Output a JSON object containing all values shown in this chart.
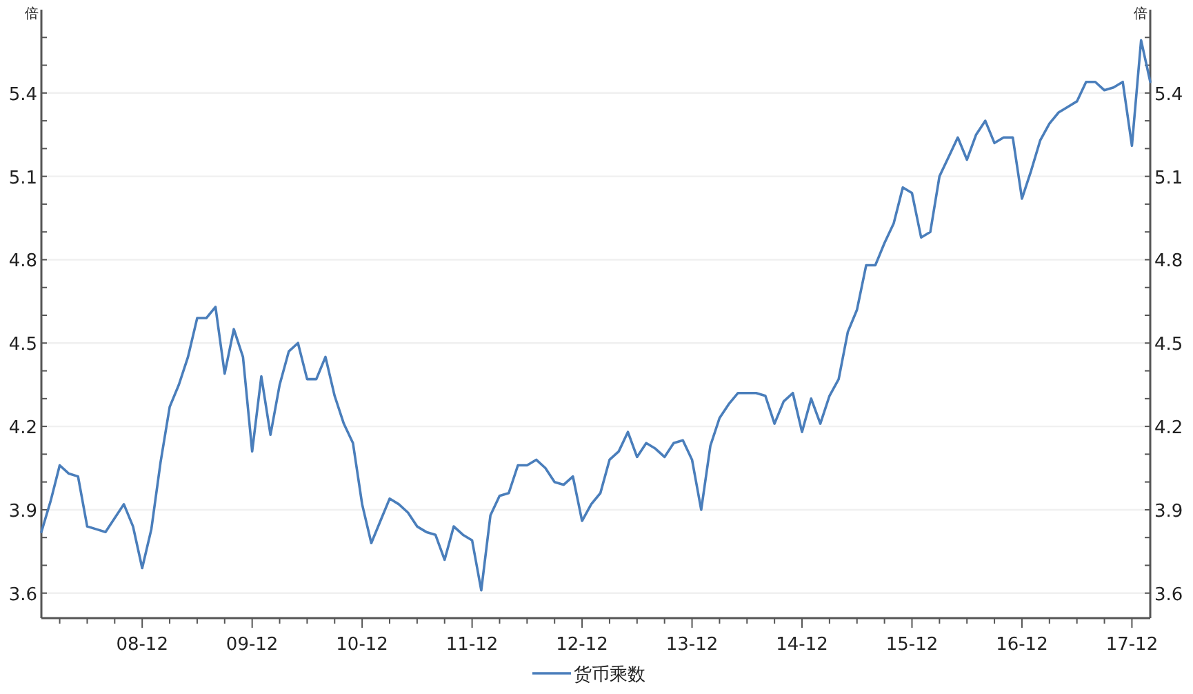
{
  "chart_data": {
    "type": "line",
    "ylabel": "倍",
    "y2label": "倍",
    "x": [
      "2008-01",
      "2008-02",
      "2008-03",
      "2008-04",
      "2008-05",
      "2008-06",
      "2008-07",
      "2008-08",
      "2008-09",
      "2008-10",
      "2008-11",
      "2008-12",
      "2009-01",
      "2009-02",
      "2009-03",
      "2009-04",
      "2009-05",
      "2009-06",
      "2009-07",
      "2009-08",
      "2009-09",
      "2009-10",
      "2009-11",
      "2009-12",
      "2010-01",
      "2010-02",
      "2010-03",
      "2010-04",
      "2010-05",
      "2010-06",
      "2010-07",
      "2010-08",
      "2010-09",
      "2010-10",
      "2010-11",
      "2010-12",
      "2011-01",
      "2011-02",
      "2011-03",
      "2011-04",
      "2011-05",
      "2011-06",
      "2011-07",
      "2011-08",
      "2011-09",
      "2011-10",
      "2011-11",
      "2011-12",
      "2012-01",
      "2012-02",
      "2012-03",
      "2012-04",
      "2012-05",
      "2012-06",
      "2012-07",
      "2012-08",
      "2012-09",
      "2012-10",
      "2012-11",
      "2012-12",
      "2013-01",
      "2013-02",
      "2013-03",
      "2013-04",
      "2013-05",
      "2013-06",
      "2013-07",
      "2013-08",
      "2013-09",
      "2013-10",
      "2013-11",
      "2013-12",
      "2014-01",
      "2014-02",
      "2014-03",
      "2014-04",
      "2014-05",
      "2014-06",
      "2014-07",
      "2014-08",
      "2014-09",
      "2014-10",
      "2014-11",
      "2014-12",
      "2015-01",
      "2015-02",
      "2015-03",
      "2015-04",
      "2015-05",
      "2015-06",
      "2015-07",
      "2015-08",
      "2015-09",
      "2015-10",
      "2015-11",
      "2015-12",
      "2016-01",
      "2016-02",
      "2016-03",
      "2016-04",
      "2016-05",
      "2016-06",
      "2016-07",
      "2016-08",
      "2016-09",
      "2016-10",
      "2016-11",
      "2016-12",
      "2017-01",
      "2017-02",
      "2017-03",
      "2017-04",
      "2017-05",
      "2017-06",
      "2017-07",
      "2017-08",
      "2017-09",
      "2017-10",
      "2017-11",
      "2017-12",
      "2018-01",
      "2018-02"
    ],
    "series": [
      {
        "name": "货币乘数",
        "color": "#4a7ebb",
        "values": [
          3.82,
          3.93,
          4.06,
          4.03,
          4.02,
          3.84,
          3.83,
          3.82,
          3.87,
          3.92,
          3.84,
          3.69,
          3.83,
          4.07,
          4.27,
          4.35,
          4.45,
          4.59,
          4.59,
          4.63,
          4.39,
          4.55,
          4.45,
          4.11,
          4.38,
          4.17,
          4.35,
          4.47,
          4.5,
          4.37,
          4.37,
          4.45,
          4.31,
          4.21,
          4.14,
          3.92,
          3.78,
          3.86,
          3.94,
          3.92,
          3.89,
          3.84,
          3.82,
          3.81,
          3.72,
          3.84,
          3.81,
          3.79,
          3.61,
          3.88,
          3.95,
          3.96,
          4.06,
          4.06,
          4.08,
          4.05,
          4.0,
          3.99,
          4.02,
          3.86,
          3.92,
          3.96,
          4.08,
          4.11,
          4.18,
          4.09,
          4.14,
          4.12,
          4.09,
          4.14,
          4.15,
          4.08,
          3.9,
          4.13,
          4.23,
          4.28,
          4.32,
          4.32,
          4.32,
          4.31,
          4.21,
          4.29,
          4.32,
          4.18,
          4.3,
          4.21,
          4.31,
          4.37,
          4.54,
          4.62,
          4.78,
          4.78,
          4.86,
          4.93,
          5.06,
          5.04,
          4.88,
          4.9,
          5.1,
          5.17,
          5.24,
          5.16,
          5.25,
          5.3,
          5.22,
          5.24,
          5.24,
          5.02,
          5.12,
          5.23,
          5.29,
          5.33,
          5.35,
          5.37,
          5.44,
          5.44,
          5.41,
          5.42,
          5.44,
          5.21,
          5.59,
          5.44
        ]
      }
    ],
    "xlim": [
      "2008-01",
      "2018-02"
    ],
    "xticks": [
      {
        "value": "2008-03",
        "label": null
      },
      {
        "value": "2008-06",
        "label": null
      },
      {
        "value": "2008-09",
        "label": null
      },
      {
        "value": "2008-12",
        "label": "08-12"
      },
      {
        "value": "2009-03",
        "label": null
      },
      {
        "value": "2009-06",
        "label": null
      },
      {
        "value": "2009-09",
        "label": null
      },
      {
        "value": "2009-12",
        "label": "09-12"
      },
      {
        "value": "2010-03",
        "label": null
      },
      {
        "value": "2010-06",
        "label": null
      },
      {
        "value": "2010-09",
        "label": null
      },
      {
        "value": "2010-12",
        "label": "10-12"
      },
      {
        "value": "2011-03",
        "label": null
      },
      {
        "value": "2011-06",
        "label": null
      },
      {
        "value": "2011-09",
        "label": null
      },
      {
        "value": "2011-12",
        "label": "11-12"
      },
      {
        "value": "2012-03",
        "label": null
      },
      {
        "value": "2012-06",
        "label": null
      },
      {
        "value": "2012-09",
        "label": null
      },
      {
        "value": "2012-12",
        "label": "12-12"
      },
      {
        "value": "2013-03",
        "label": null
      },
      {
        "value": "2013-06",
        "label": null
      },
      {
        "value": "2013-09",
        "label": null
      },
      {
        "value": "2013-12",
        "label": "13-12"
      },
      {
        "value": "2014-03",
        "label": null
      },
      {
        "value": "2014-06",
        "label": null
      },
      {
        "value": "2014-09",
        "label": null
      },
      {
        "value": "2014-12",
        "label": "14-12"
      },
      {
        "value": "2015-03",
        "label": null
      },
      {
        "value": "2015-06",
        "label": null
      },
      {
        "value": "2015-09",
        "label": null
      },
      {
        "value": "2015-12",
        "label": "15-12"
      },
      {
        "value": "2016-03",
        "label": null
      },
      {
        "value": "2016-06",
        "label": null
      },
      {
        "value": "2016-09",
        "label": null
      },
      {
        "value": "2016-12",
        "label": "16-12"
      },
      {
        "value": "2017-03",
        "label": null
      },
      {
        "value": "2017-06",
        "label": null
      },
      {
        "value": "2017-09",
        "label": null
      },
      {
        "value": "2017-12",
        "label": "17-12"
      }
    ],
    "ylim": [
      3.51,
      5.7
    ],
    "yticks": [
      3.6,
      {
        "value": 3.7,
        "label": null
      },
      {
        "value": 3.8,
        "label": null
      },
      3.9,
      {
        "value": 4.0,
        "label": null
      },
      {
        "value": 4.1,
        "label": null
      },
      4.2,
      {
        "value": 4.3,
        "label": null
      },
      {
        "value": 4.4,
        "label": null
      },
      4.5,
      {
        "value": 4.6,
        "label": null
      },
      {
        "value": 4.7,
        "label": null
      },
      4.8,
      {
        "value": 4.9,
        "label": null
      },
      {
        "value": 5.0,
        "label": null
      },
      5.1,
      {
        "value": 5.2,
        "label": null
      },
      {
        "value": 5.3,
        "label": null
      },
      5.4,
      {
        "value": 5.5,
        "label": null
      },
      {
        "value": 5.6,
        "label": null
      }
    ],
    "y2lim": [
      3.51,
      5.7
    ],
    "y2ticks": [
      3.6,
      {
        "value": 3.7,
        "label": null
      },
      {
        "value": 3.8,
        "label": null
      },
      3.9,
      {
        "value": 4.0,
        "label": null
      },
      {
        "value": 4.1,
        "label": null
      },
      4.2,
      {
        "value": 4.3,
        "label": null
      },
      {
        "value": 4.4,
        "label": null
      },
      4.5,
      {
        "value": 4.6,
        "label": null
      },
      {
        "value": 4.7,
        "label": null
      },
      4.8,
      {
        "value": 4.9,
        "label": null
      },
      {
        "value": 5.0,
        "label": null
      },
      5.1,
      {
        "value": 5.2,
        "label": null
      },
      {
        "value": 5.3,
        "label": null
      },
      5.4,
      {
        "value": 5.5,
        "label": null
      },
      {
        "value": 5.6,
        "label": null
      }
    ],
    "grid": "y",
    "legend": "bottom"
  }
}
